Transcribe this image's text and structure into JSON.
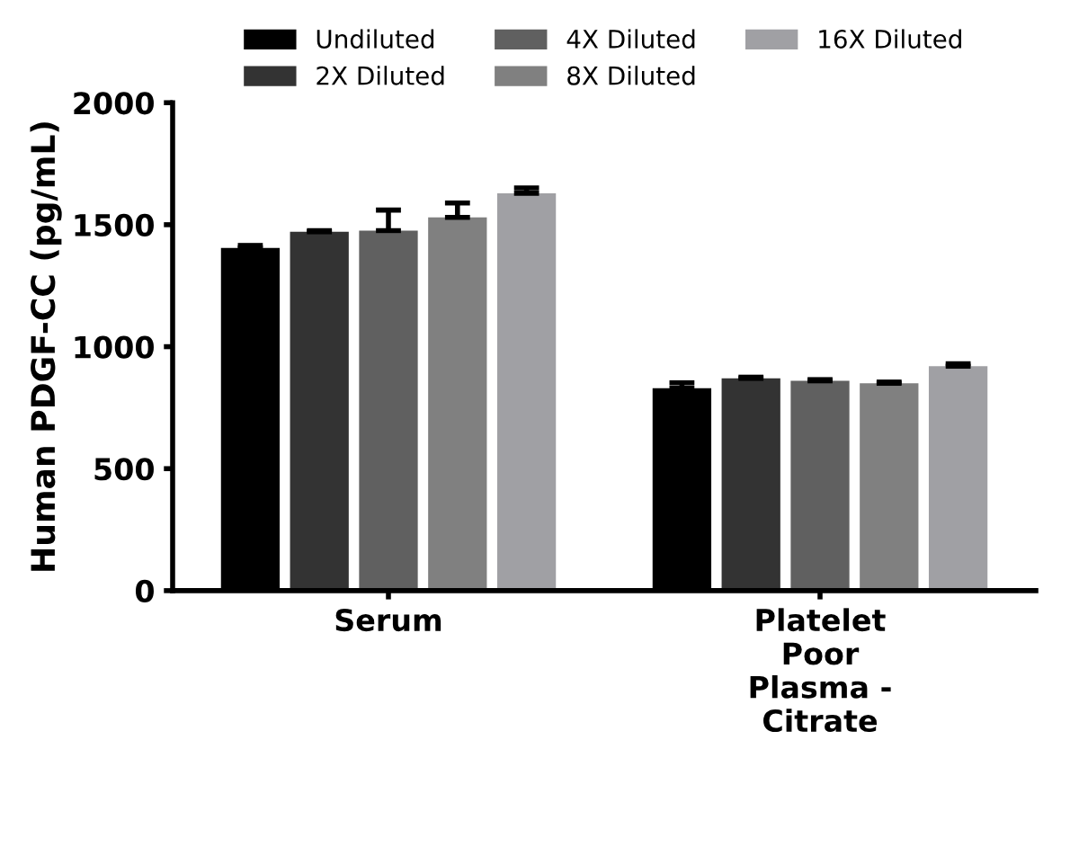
{
  "chart_data": {
    "type": "bar",
    "ylabel": "Human PDGF-CC (pg/mL)",
    "categories": [
      "Serum",
      "Platelet\nPoor\nPlasma -\nCitrate"
    ],
    "ylim": [
      0,
      2000
    ],
    "yticks": [
      0,
      500,
      1000,
      1500,
      2000
    ],
    "grid": false,
    "legend": "top",
    "series": [
      {
        "name": "Undiluted",
        "color": "#000000",
        "values": [
          1405,
          830
        ],
        "errors": [
          10,
          22
        ]
      },
      {
        "name": "2X Diluted",
        "color": "#333333",
        "values": [
          1471,
          870
        ],
        "errors": [
          5,
          5
        ]
      },
      {
        "name": "4X Diluted",
        "color": "#606060",
        "values": [
          1476,
          860
        ],
        "errors": [
          84,
          5
        ]
      },
      {
        "name": "8X Diluted",
        "color": "#808080",
        "values": [
          1530,
          850
        ],
        "errors": [
          59,
          5
        ]
      },
      {
        "name": "16X Diluted",
        "color": "#a0a0a4",
        "values": [
          1629,
          920
        ],
        "errors": [
          22,
          10
        ]
      }
    ]
  }
}
